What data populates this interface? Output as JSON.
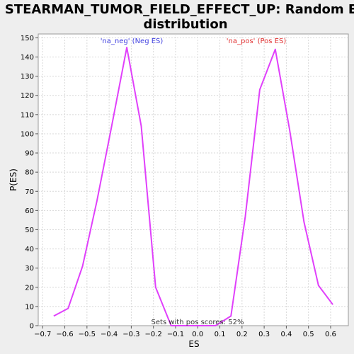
{
  "chart_data": {
    "type": "line",
    "title_line1": "STEARMAN_TUMOR_FIELD_EFFECT_UP: Random ES",
    "title_line2": "distribution",
    "xlabel": "ES",
    "ylabel": "P(ES)",
    "xlim": [
      -0.72,
      0.68
    ],
    "ylim": [
      0,
      152
    ],
    "xticks": [
      -0.7,
      -0.6,
      -0.5,
      -0.4,
      -0.3,
      -0.2,
      -0.1,
      0.0,
      0.1,
      0.2,
      0.3,
      0.4,
      0.5,
      0.6
    ],
    "xtick_labels": [
      "−0.7",
      "−0.6",
      "−0.5",
      "−0.4",
      "−0.3",
      "−0.2",
      "−0.1",
      "0.0",
      "0.1",
      "0.2",
      "0.3",
      "0.4",
      "0.5",
      "0.6"
    ],
    "yticks": [
      0,
      10,
      20,
      30,
      40,
      50,
      60,
      70,
      80,
      90,
      100,
      110,
      120,
      130,
      140,
      150
    ],
    "grid": true,
    "line_color": "#e040fb",
    "series": [
      {
        "x": [
          -0.65,
          -0.585,
          -0.52,
          -0.455,
          -0.39,
          -0.32,
          -0.255,
          -0.19,
          -0.12,
          -0.055,
          0.01,
          0.08,
          0.15,
          0.215,
          0.28,
          0.35,
          0.415,
          0.48,
          0.545,
          0.61
        ],
        "y": [
          5,
          9,
          31,
          65,
          103,
          145,
          104,
          20,
          0,
          0,
          0,
          0,
          5,
          57,
          123,
          144,
          102,
          54,
          21,
          11
        ]
      }
    ],
    "legend": [
      {
        "label": "'na_neg' (Neg ES)",
        "color": "#4040e0"
      },
      {
        "label": "'na_pos' (Pos ES)",
        "color": "#e03030"
      }
    ],
    "annotation": "Sets with pos scores: 52%"
  }
}
